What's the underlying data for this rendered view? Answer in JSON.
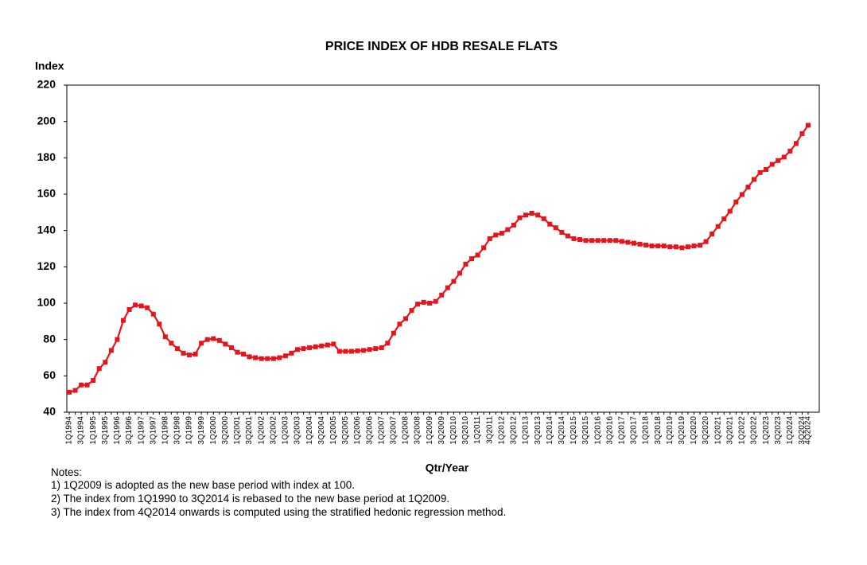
{
  "chart_data": {
    "type": "line",
    "title": "PRICE INDEX OF HDB RESALE FLATS",
    "y_label": "Index",
    "x_label": "Qtr/Year",
    "notes": [
      "Notes:",
      "1) 1Q2009 is adopted as the new base period with index at 100.",
      "2) The index from 1Q1990 to 3Q2014 is rebased to the new base period at 1Q2009.",
      "3) The index from 4Q2014 onwards is computed using the stratified hedonic regression method."
    ],
    "categories": [
      "1Q1994",
      null,
      "3Q1994",
      null,
      "1Q1995",
      null,
      "3Q1995",
      null,
      "1Q1996",
      null,
      "3Q1996",
      null,
      "1Q1997",
      null,
      "3Q1997",
      null,
      "1Q1998",
      null,
      "3Q1998",
      null,
      "1Q1999",
      null,
      "3Q1999",
      null,
      "1Q2000",
      null,
      "3Q2000",
      null,
      "1Q2001",
      null,
      "3Q2001",
      null,
      "1Q2002",
      null,
      "3Q2002",
      null,
      "1Q2003",
      null,
      "3Q2003",
      null,
      "1Q2004",
      null,
      "3Q2004",
      null,
      "1Q2005",
      null,
      "3Q2005",
      null,
      "1Q2006",
      null,
      "3Q2006",
      null,
      "1Q2007",
      null,
      "3Q2007",
      null,
      "1Q2008",
      null,
      "3Q2008",
      null,
      "1Q2009",
      null,
      "3Q2009",
      null,
      "1Q2010",
      null,
      "3Q2010",
      null,
      "1Q2011",
      null,
      "3Q2011",
      null,
      "1Q2012",
      null,
      "3Q2012",
      null,
      "1Q2013",
      null,
      "3Q2013",
      null,
      "1Q2014",
      null,
      "3Q2014",
      null,
      "1Q2015",
      null,
      "3Q2015",
      null,
      "1Q2016",
      null,
      "3Q2016",
      null,
      "1Q2017",
      null,
      "3Q2017",
      null,
      "1Q2018",
      null,
      "3Q2018",
      null,
      "1Q2019",
      null,
      "3Q2019",
      null,
      "1Q2020",
      null,
      "3Q2020",
      null,
      "1Q2021",
      null,
      "3Q2021",
      null,
      "1Q2022",
      null,
      "3Q2022",
      null,
      "1Q2023",
      null,
      "3Q2023",
      null,
      "1Q2024",
      null,
      "3Q2024",
      "4Q2024"
    ],
    "series": [
      {
        "name": "Price Index",
        "color": "#e8141c",
        "values": [
          51,
          52,
          55,
          55,
          57.5,
          64,
          67.5,
          74,
          80,
          90.5,
          96.5,
          99,
          98.5,
          97.5,
          94,
          88.5,
          81.5,
          78,
          75,
          72.5,
          71.5,
          72,
          78,
          80,
          80.5,
          79.5,
          77.5,
          75.5,
          73,
          72,
          70.5,
          70,
          69.5,
          69.5,
          69.5,
          70,
          71,
          72.5,
          74.5,
          75,
          75.5,
          76,
          76.5,
          77,
          77.5,
          73.5,
          73.5,
          73.5,
          73.8,
          74,
          74.5,
          75,
          75.5,
          78,
          83.5,
          88.5,
          91.5,
          96,
          99.5,
          100.5,
          100,
          101,
          104.5,
          108.5,
          112,
          116.5,
          121.5,
          124.5,
          126.5,
          130.5,
          135.5,
          137.5,
          138.5,
          140.5,
          143,
          147,
          148.5,
          149.5,
          148.5,
          146.5,
          143.5,
          141.5,
          139,
          137,
          135.5,
          135,
          134.5,
          134.5,
          134.5,
          134.5,
          134.5,
          134.5,
          134,
          133.5,
          133,
          132.5,
          132,
          131.5,
          131.5,
          131.5,
          131,
          131,
          130.5,
          131,
          131.5,
          131.9,
          133.9,
          138.1,
          142.2,
          146.4,
          150.6,
          155.7,
          159.8,
          163.9,
          168.1,
          171.9,
          173.6,
          176.4,
          178.5,
          180.4,
          183.7,
          187.9,
          193.3,
          197.9
        ]
      }
    ],
    "ylim": [
      40,
      220
    ],
    "yticks": [
      40,
      60,
      80,
      100,
      120,
      140,
      160,
      180,
      200,
      220
    ],
    "grid": false
  }
}
